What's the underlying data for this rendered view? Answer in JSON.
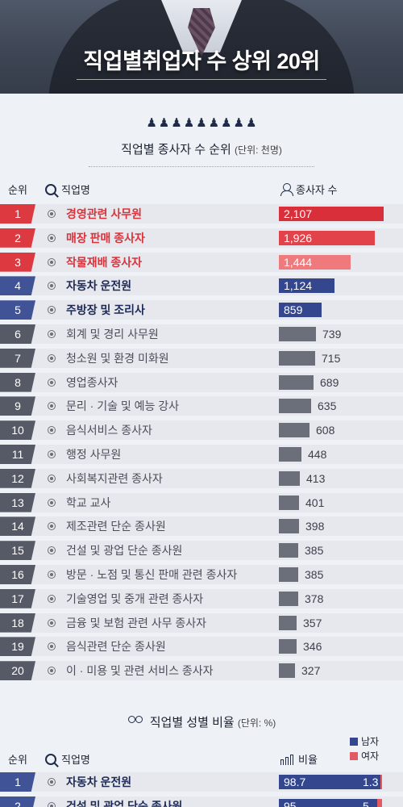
{
  "header": {
    "title": "직업별취업자 수 상위 20위"
  },
  "section1": {
    "people_icons": 9,
    "title": "직업별 종사자 수 순위",
    "unit": "(단위: 천명)",
    "columns": {
      "rank": "순위",
      "job": "직업명",
      "count": "종사자 수"
    },
    "rows": [
      {
        "rank": "1",
        "job": "경영관련 사무원",
        "value": "2,107",
        "num": 2107,
        "style": "red"
      },
      {
        "rank": "2",
        "job": "매장 판매 종사자",
        "value": "1,926",
        "num": 1926,
        "style": "red"
      },
      {
        "rank": "3",
        "job": "작물재배 종사자",
        "value": "1,444",
        "num": 1444,
        "style": "red"
      },
      {
        "rank": "4",
        "job": "자동차 운전원",
        "value": "1,124",
        "num": 1124,
        "style": "blue"
      },
      {
        "rank": "5",
        "job": "주방장 및 조리사",
        "value": "859",
        "num": 859,
        "style": "blue"
      },
      {
        "rank": "6",
        "job": "회계 및 경리 사무원",
        "value": "739",
        "num": 739,
        "style": "gray"
      },
      {
        "rank": "7",
        "job": "청소원 및 환경 미화원",
        "value": "715",
        "num": 715,
        "style": "gray"
      },
      {
        "rank": "8",
        "job": "영업종사자",
        "value": "689",
        "num": 689,
        "style": "gray"
      },
      {
        "rank": "9",
        "job": "문리 · 기술 및 예능 강사",
        "value": "635",
        "num": 635,
        "style": "gray"
      },
      {
        "rank": "10",
        "job": "음식서비스 종사자",
        "value": "608",
        "num": 608,
        "style": "gray"
      },
      {
        "rank": "11",
        "job": "행정 사무원",
        "value": "448",
        "num": 448,
        "style": "gray"
      },
      {
        "rank": "12",
        "job": "사회복지관련 종사자",
        "value": "413",
        "num": 413,
        "style": "gray"
      },
      {
        "rank": "13",
        "job": "학교 교사",
        "value": "401",
        "num": 401,
        "style": "gray"
      },
      {
        "rank": "14",
        "job": "제조관련 단순 종사원",
        "value": "398",
        "num": 398,
        "style": "gray"
      },
      {
        "rank": "15",
        "job": "건설 및 광업 단순 종사원",
        "value": "385",
        "num": 385,
        "style": "gray"
      },
      {
        "rank": "16",
        "job": "방문 · 노점 및 통신 판매 관련 종사자",
        "value": "385",
        "num": 385,
        "style": "gray"
      },
      {
        "rank": "17",
        "job": "기술영업 및 중개 관련 종사자",
        "value": "378",
        "num": 378,
        "style": "gray"
      },
      {
        "rank": "18",
        "job": "금융 및 보험 관련 사무 종사자",
        "value": "357",
        "num": 357,
        "style": "gray"
      },
      {
        "rank": "19",
        "job": "음식관련 단순 종사원",
        "value": "346",
        "num": 346,
        "style": "gray"
      },
      {
        "rank": "20",
        "job": "이 · 미용 및 관련 서비스 종사자",
        "value": "327",
        "num": 327,
        "style": "gray"
      }
    ]
  },
  "section2": {
    "title": "직업별  성별 비율",
    "unit": "(단위: %)",
    "columns": {
      "rank": "순위",
      "job": "직업명",
      "ratio": "비율"
    },
    "legend": {
      "male": "남자",
      "female": "여자",
      "male_color": "#34478e",
      "female_color": "#e25a62"
    },
    "rows": [
      {
        "rank": "1",
        "job": "자동차 운전원",
        "male": "98.7",
        "female": "1.3",
        "male_num": 98.7
      },
      {
        "rank": "2",
        "job": "건설 및 광업 단순 종사원",
        "male": "95",
        "female": "5",
        "male_num": 95
      }
    ]
  }
}
